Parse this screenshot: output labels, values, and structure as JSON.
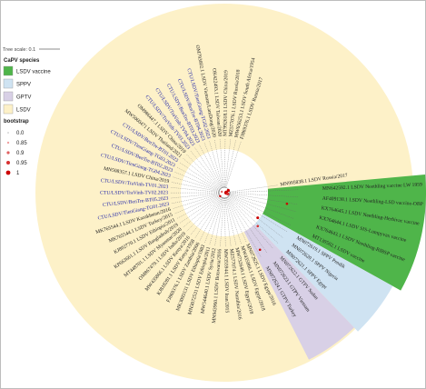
{
  "tree_scale": "Tree scale: 0.1",
  "legend": {
    "species_title": "CaPV species",
    "species": [
      {
        "label": "LSDV vaccine",
        "color": "#4fb54a"
      },
      {
        "label": "SPPV",
        "color": "#cfe3f2"
      },
      {
        "label": "GPTV",
        "color": "#d8d0e6"
      },
      {
        "label": "LSDV",
        "color": "#fdf1c8"
      }
    ],
    "bootstrap_title": "bootstrap",
    "bootstrap": [
      {
        "label": "0.0",
        "color": "#bbbbbb"
      },
      {
        "label": "0.85",
        "color": "#f0a0a0"
      },
      {
        "label": "0.9",
        "color": "#e06060"
      },
      {
        "label": "0.95",
        "color": "#d83030"
      },
      {
        "label": "1",
        "color": "#cc0000"
      }
    ]
  },
  "colors": {
    "lsdv_bg": "#fdf1c8",
    "vaccine_bg": "#4fb54a",
    "sppv_bg": "#cfe3f2",
    "gptv_bg": "#d8d0e6",
    "highlight_label": "#1f24a8",
    "label": "#222222",
    "branch": "#666666"
  },
  "leaves": [
    {
      "label": "MN995838.1 LSDV Russia/2017",
      "group": "lsdv"
    },
    {
      "label": "MN642592.1 LSDV Neethling vaccine LW 1959",
      "group": "vaccine"
    },
    {
      "label": "AF409138.1 LSDV Neethling-LSD vaccine-OBP",
      "group": "vaccine"
    },
    {
      "label": "KX764645.1 LSDV Neethling-Herbivac vaccine",
      "group": "vaccine"
    },
    {
      "label": "KX764644.1 LSDV SIS-Lumpyvax vaccine",
      "group": "vaccine"
    },
    {
      "label": "KX764643.1 LSDV Neethling-RIBSP vaccine",
      "group": "vaccine"
    },
    {
      "label": "MT130502.1 LSDV vaccine",
      "group": "vaccine"
    },
    {
      "label": "MN072619.1 SPPV Pendik",
      "group": "sppv"
    },
    {
      "label": "MN072620.1 SPPV Nigeria",
      "group": "sppv"
    },
    {
      "label": "MN072621.1 SPPV Egypt",
      "group": "sppv"
    },
    {
      "label": "MN072622.1 GTPV Sudan",
      "group": "gptv"
    },
    {
      "label": "MN072623.1 GTPV Vietnam",
      "group": "gptv"
    },
    {
      "label": "MN072624.1 GTPV Turkey",
      "group": "gptv"
    },
    {
      "label": "MN072625.1 LSDV Egypt/2016",
      "group": "lsdv"
    },
    {
      "label": "MW435866.1 LSDV Egypt/2018",
      "group": "lsdv"
    },
    {
      "label": "MW732649.1 LSDV Egypt/2018",
      "group": "lsdv"
    },
    {
      "label": "MZ577074.1 LSDV Namibia/2016",
      "group": "lsdv"
    },
    {
      "label": "MW355944.1 LSDV Iran/2015",
      "group": "lsdv"
    },
    {
      "label": "MN943960.1 LSDV Botswana/2016",
      "group": "lsdv"
    },
    {
      "label": "MW544640.1 LSDV Syria/2012",
      "group": "lsdv"
    },
    {
      "label": "MN3072531 LSDV Ethiopia/2011",
      "group": "lsdv"
    },
    {
      "label": "MK3093131 LSDV Ethiopia/1983",
      "group": "lsdv"
    },
    {
      "label": "FJ869376.1 LSDV Zambia/2006",
      "group": "lsdv"
    },
    {
      "label": "KJ818281.1 LSDV Kenya/1958",
      "group": "lsdv"
    },
    {
      "label": "MW435866.1 LSDV Kenya/2016",
      "group": "lsdv"
    },
    {
      "label": "OM867479.1 LSDV India/2019",
      "group": "lsdv"
    },
    {
      "label": "MT448701.1 LSDV Myanmar/2020",
      "group": "lsdv"
    },
    {
      "label": "KP663661.1 LSDV Bangladesh/2019",
      "group": "lsdv"
    },
    {
      "label": "KJ802770.1 LSDV Ethiopia/2011",
      "group": "lsdv"
    },
    {
      "label": "MK765544.1 LSDV Turkey/2015",
      "group": "lsdv"
    },
    {
      "label": "MK765544.1 LSDV Kazakhstan/2016",
      "group": "lsdv"
    },
    {
      "label": "CTU/LSDV/TienGiang-TG01.2023",
      "group": "highlight"
    },
    {
      "label": "CTU/LSDV/BenTre-BT05.2023",
      "group": "highlight"
    },
    {
      "label": "CTU/LSDV/TraVinh-TV02.2023",
      "group": "highlight"
    },
    {
      "label": "CTU/LSDV/TraVinh-TV01.2023",
      "group": "highlight"
    },
    {
      "label": "MN508357.1 LSDV China/2019",
      "group": "lsdv"
    },
    {
      "label": "CTU/LSDV/TienGiang-TG04.2023",
      "group": "highlight"
    },
    {
      "label": "CTU/LSDV/BenTre-BT02.2023",
      "group": "highlight"
    },
    {
      "label": "CTU/LSDV/TienGiang-TG03.2023",
      "group": "highlight"
    },
    {
      "label": "CTU/LSDV/BenTre-BT01.2023",
      "group": "highlight"
    },
    {
      "label": "MW5060471 LSDV Thailand/2021",
      "group": "lsdv"
    },
    {
      "label": "OM986447.1 LSDV China/2019",
      "group": "lsdv"
    },
    {
      "label": "CTU/LSDV/TraVinh-TV03.2023",
      "group": "highlight"
    },
    {
      "label": "CTU/LSDV/TraVinh-TV04.2023",
      "group": "highlight"
    },
    {
      "label": "CTU/LSDV/BenTre-BT03.2023",
      "group": "highlight"
    },
    {
      "label": "CTU/LSDV/BenTre-BT04.2023",
      "group": "highlight"
    },
    {
      "label": "CTU/LSDV/TienGiang-TG02.2023",
      "group": "highlight"
    },
    {
      "label": "OM793602.1 LSDV Vietnam/LamDong/2020",
      "group": "lsdv"
    },
    {
      "label": "OK422493.1 LSDV Taiwan/2020",
      "group": "lsdv"
    },
    {
      "label": "MT992618.1 LSDV China/2019",
      "group": "lsdv"
    },
    {
      "label": "MZ577076.1 LSDV Russia/2018",
      "group": "lsdv"
    },
    {
      "label": "MW656253.1 LSDV South Africa/1954",
      "group": "lsdv"
    },
    {
      "label": "FJ869376.1 LSDV Russia/2017",
      "group": "lsdv"
    }
  ]
}
